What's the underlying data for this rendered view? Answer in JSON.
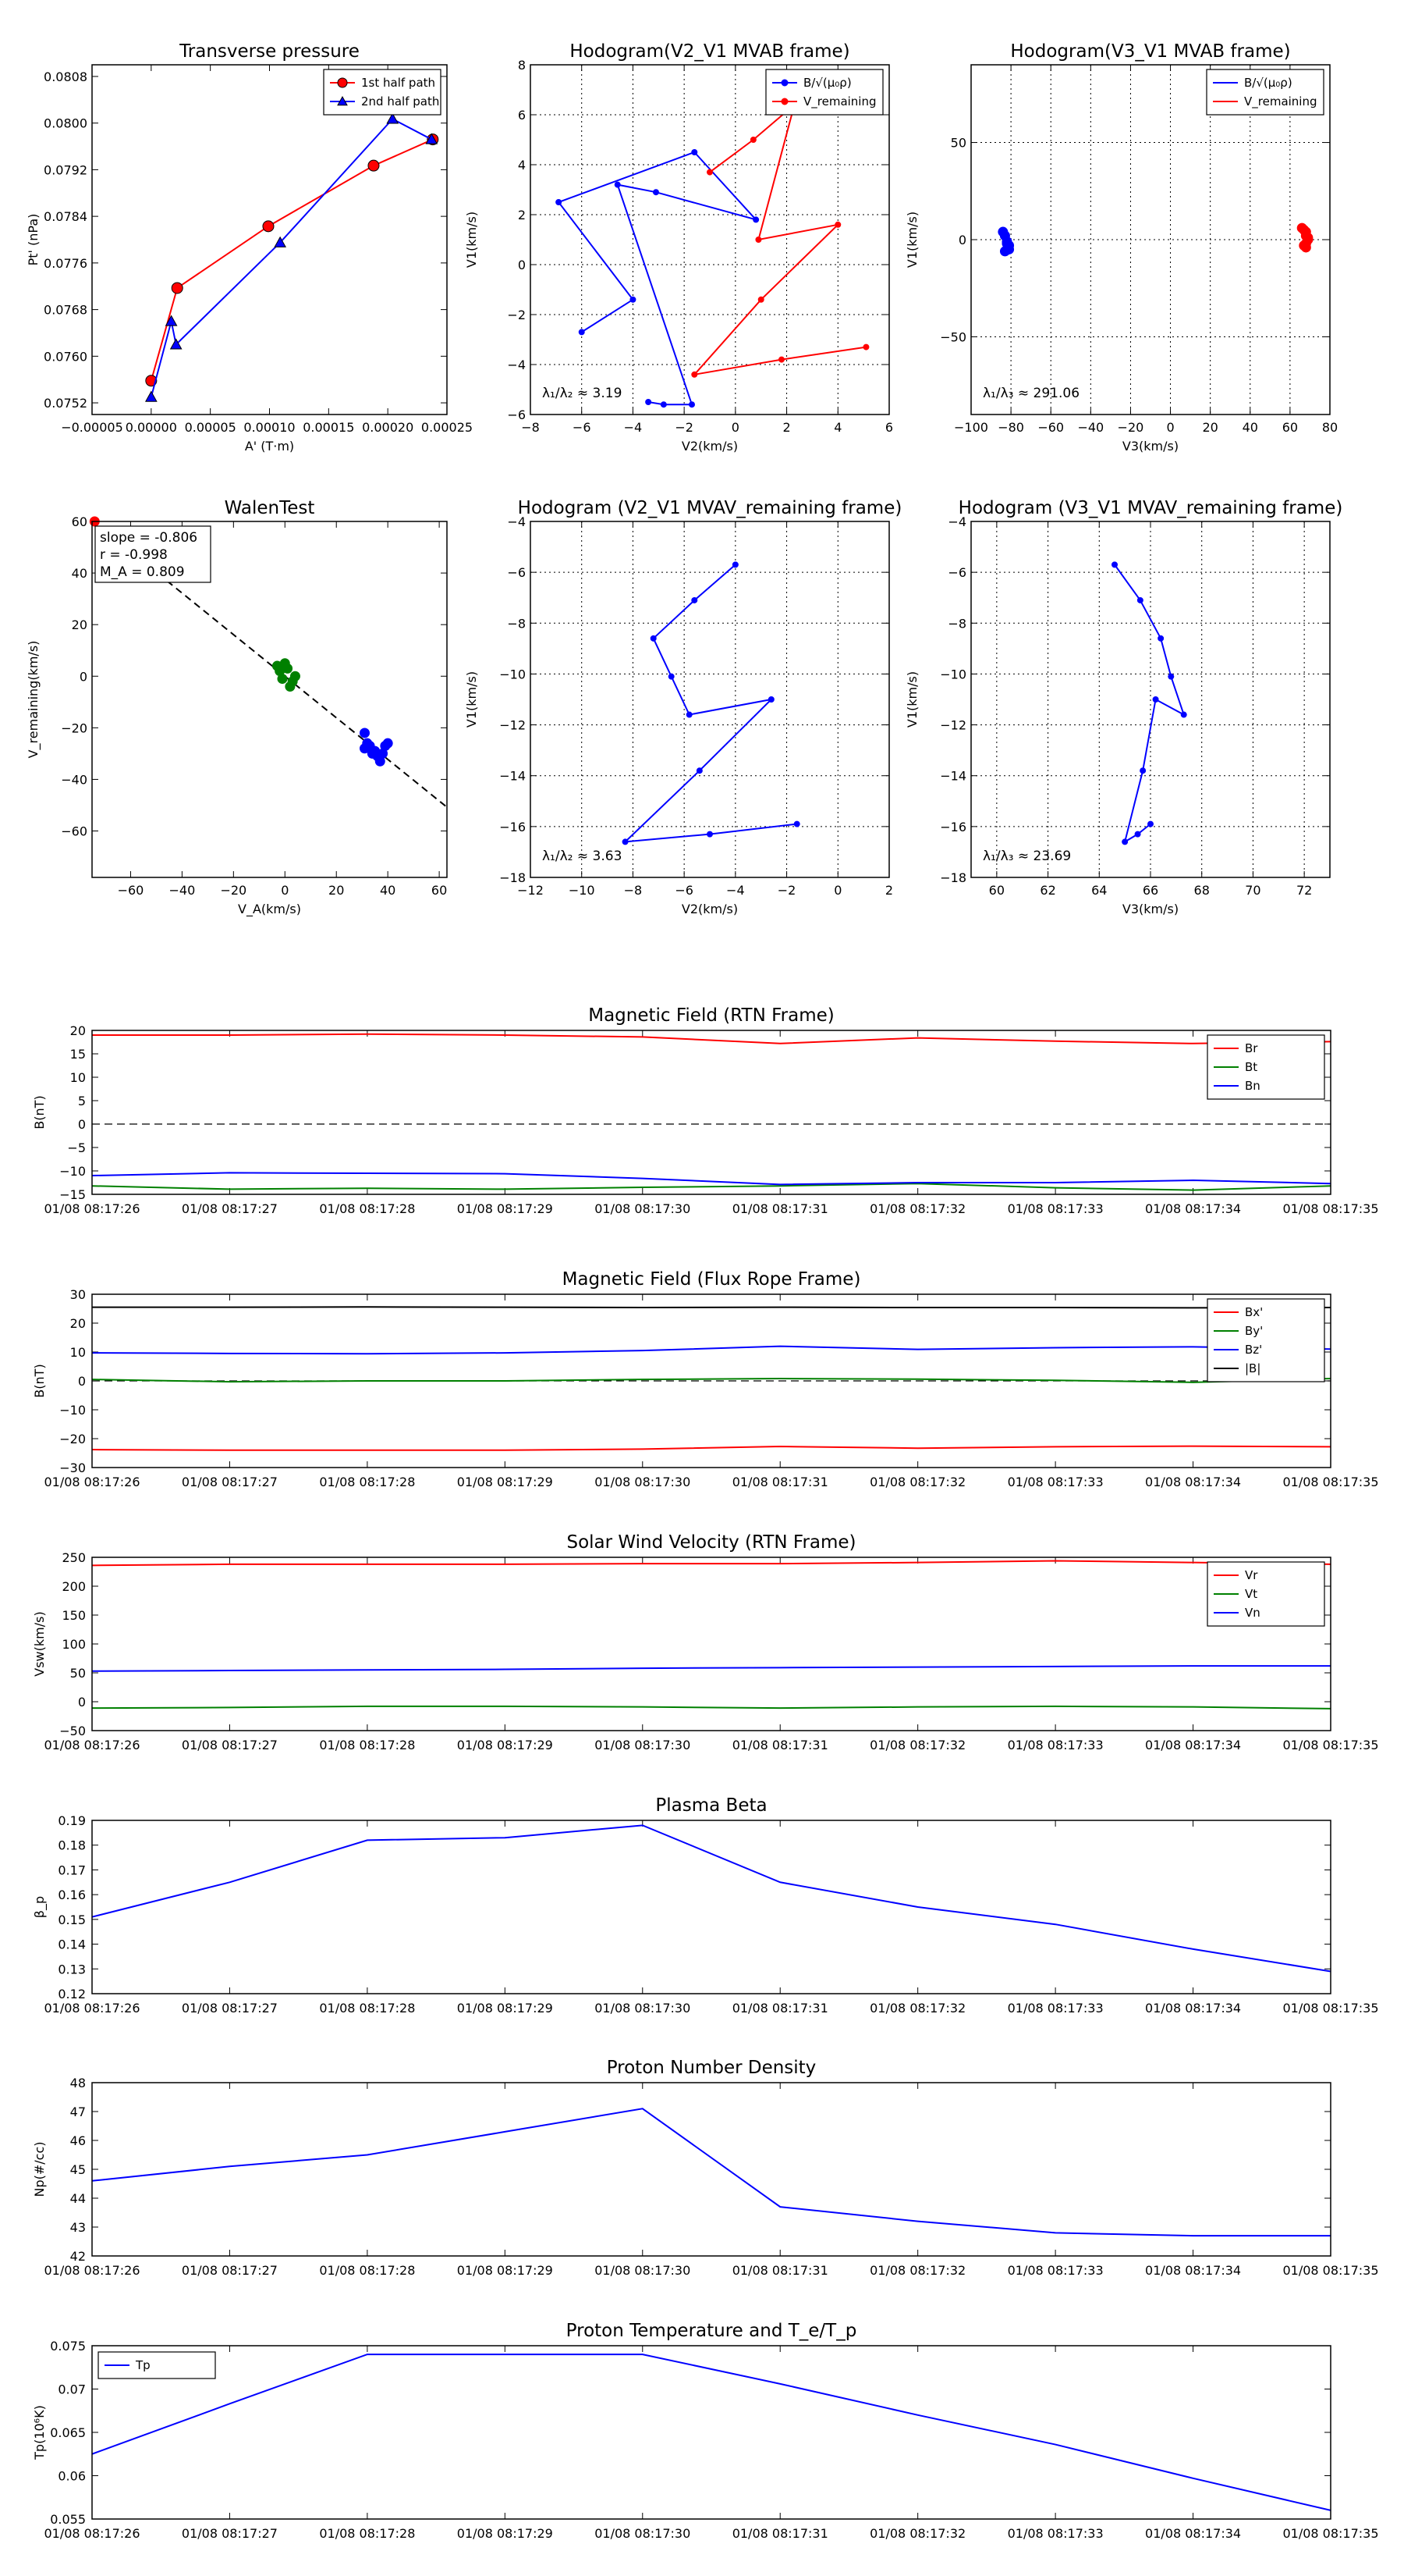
{
  "colors": {
    "red": "#ff0000",
    "blue": "#0000ff",
    "green": "#008000",
    "black": "#000000",
    "grid": "#000000"
  },
  "time_ticks": [
    "01/08 08:17:26",
    "01/08 08:17:27",
    "01/08 08:17:28",
    "01/08 08:17:29",
    "01/08 08:17:30",
    "01/08 08:17:31",
    "01/08 08:17:32",
    "01/08 08:17:33",
    "01/08 08:17:34",
    "01/08 08:17:35"
  ],
  "chart_data": [
    {
      "id": "transverse",
      "type": "line",
      "title": "Transverse pressure",
      "xlabel": "A' (T·m)",
      "ylabel": "Pt' (nPa)",
      "xlim": [
        -5e-05,
        0.00025
      ],
      "ylim": [
        0.075,
        0.081
      ],
      "xticks": [
        -5e-05,
        0,
        5e-05,
        0.0001,
        0.00015,
        0.0002,
        0.00025
      ],
      "xtick_labels": [
        "−0.00005",
        "0.00000",
        "0.00005",
        "0.00010",
        "0.00015",
        "0.00020",
        "0.00025"
      ],
      "yticks": [
        0.0752,
        0.076,
        0.0768,
        0.0776,
        0.0784,
        0.0792,
        0.08,
        0.0808
      ],
      "ytick_labels": [
        "0.0752",
        "0.0760",
        "0.0768",
        "0.0776",
        "0.0784",
        "0.0792",
        "0.0800",
        "0.0808"
      ],
      "grid": false,
      "legend": "top-right",
      "series": [
        {
          "name": "1st half path",
          "color": "#ff0000",
          "marker": "circle",
          "x": [
            0.0,
            2.2e-05,
            9.9e-05,
            0.000188,
            0.000238
          ],
          "y": [
            0.07558,
            0.07717,
            0.07823,
            0.07927,
            0.07972
          ]
        },
        {
          "name": "2nd half path",
          "color": "#0000ff",
          "marker": "triangle",
          "x": [
            0.0,
            1.7e-05,
            2.1e-05,
            0.000109,
            0.000204,
            0.000237
          ],
          "y": [
            0.0753,
            0.0766,
            0.0762,
            0.07795,
            0.08007,
            0.07972
          ]
        }
      ]
    },
    {
      "id": "hodo_mvab",
      "type": "line",
      "title": "Hodogram(V2_V1 MVAB frame)",
      "xlabel": "V2(km/s)",
      "ylabel": "V1(km/s)",
      "xlim": [
        -8,
        6
      ],
      "ylim": [
        -6,
        8
      ],
      "xticks": [
        -8,
        -6,
        -4,
        -2,
        0,
        2,
        4,
        6
      ],
      "yticks": [
        -6,
        -4,
        -2,
        0,
        2,
        4,
        6,
        8
      ],
      "grid": true,
      "legend": "top-right",
      "annotation": "λ₁/λ₂ ≈ 3.19",
      "series": [
        {
          "name": "B/√(μ₀ρ)",
          "color": "#0000ff",
          "x": [
            -6.0,
            -4.0,
            -6.9,
            -1.6,
            0.8,
            -3.1,
            -4.6,
            -1.7,
            -2.8,
            -3.4
          ],
          "y": [
            -2.7,
            -1.4,
            2.5,
            4.5,
            1.8,
            2.9,
            3.2,
            -5.6,
            -5.6,
            -5.5
          ]
        },
        {
          "name": "V_remaining",
          "color": "#ff0000",
          "x": [
            -1.0,
            0.7,
            2.3,
            0.9,
            4.0,
            1.0,
            -1.6,
            1.8,
            5.1
          ],
          "y": [
            3.7,
            5.0,
            6.4,
            1.0,
            1.6,
            -1.4,
            -4.4,
            -3.8,
            -3.3
          ]
        }
      ]
    },
    {
      "id": "hodo_v3_mvab",
      "type": "scatter",
      "title": "Hodogram(V3_V1 MVAB frame)",
      "xlabel": "V3(km/s)",
      "ylabel": "V1(km/s)",
      "xlim": [
        -100,
        80
      ],
      "ylim": [
        -90,
        90
      ],
      "xticks": [
        -100,
        -80,
        -60,
        -40,
        -20,
        0,
        20,
        40,
        60,
        80
      ],
      "yticks": [
        -50,
        0,
        50
      ],
      "grid": true,
      "legend": "top-right",
      "annotation": "λ₁/λ₃ ≈ 291.06",
      "series": [
        {
          "name": "B/√(μ₀ρ)",
          "color": "#0000ff",
          "x": [
            -84,
            -83,
            -82,
            -81,
            -83,
            -82,
            -81
          ],
          "y": [
            4,
            2,
            -2,
            -5,
            -6,
            -1,
            -3
          ]
        },
        {
          "name": "V_remaining",
          "color": "#ff0000",
          "x": [
            66,
            67,
            68,
            68,
            69,
            68,
            67,
            68,
            69
          ],
          "y": [
            6,
            5,
            4,
            2,
            0,
            -2,
            -3,
            -4,
            1
          ]
        }
      ]
    },
    {
      "id": "walen",
      "type": "scatter",
      "title": "WalenTest",
      "xlabel": "V_A(km/s)",
      "ylabel": "V_remaining(km/s)",
      "xlim": [
        -75,
        63
      ],
      "ylim": [
        -78,
        60
      ],
      "xticks": [
        -60,
        -40,
        -20,
        0,
        20,
        40,
        60
      ],
      "yticks": [
        -60,
        -40,
        -20,
        0,
        20,
        40,
        60
      ],
      "grid": false,
      "annotation_lines": [
        "slope = -0.806",
        "r = -0.998",
        "M_A = 0.809"
      ],
      "fit": {
        "slope": -0.806,
        "intercept": 0
      },
      "series": [
        {
          "name": "red",
          "color": "#ff0000",
          "x": [
            -74
          ],
          "y": [
            60
          ]
        },
        {
          "name": "green",
          "color": "#008000",
          "x": [
            -3,
            -2,
            0,
            1,
            2,
            4,
            3,
            -1
          ],
          "y": [
            4,
            2,
            5,
            3,
            -4,
            0,
            -2,
            -1
          ]
        },
        {
          "name": "blue",
          "color": "#0000ff",
          "x": [
            31,
            32,
            33,
            34,
            35,
            36,
            37,
            38,
            39,
            40,
            31,
            33
          ],
          "y": [
            -22,
            -26,
            -28,
            -30,
            -29,
            -31,
            -33,
            -30,
            -27,
            -26,
            -28,
            -27
          ]
        }
      ]
    },
    {
      "id": "hodo_mvav",
      "type": "line",
      "title": "Hodogram (V2_V1 MVAV_remaining frame)",
      "xlabel": "V2(km/s)",
      "ylabel": "V1(km/s)",
      "xlim": [
        -12,
        2
      ],
      "ylim": [
        -18,
        -4
      ],
      "xticks": [
        -12,
        -10,
        -8,
        -6,
        -4,
        -2,
        0,
        2
      ],
      "yticks": [
        -18,
        -16,
        -14,
        -12,
        -10,
        -8,
        -6,
        -4
      ],
      "grid": true,
      "annotation": "λ₁/λ₂ ≈ 3.63",
      "series": [
        {
          "name": "B",
          "color": "#0000ff",
          "x": [
            -4.0,
            -5.6,
            -7.2,
            -6.5,
            -5.8,
            -2.6,
            -5.4,
            -8.3,
            -5.0,
            -1.6
          ],
          "y": [
            -5.7,
            -7.1,
            -8.6,
            -10.1,
            -11.6,
            -11.0,
            -13.8,
            -16.6,
            -16.3,
            -15.9
          ]
        }
      ]
    },
    {
      "id": "hodo_v3_mvav",
      "type": "line",
      "title": "Hodogram (V3_V1 MVAV_remaining frame)",
      "xlabel": "V3(km/s)",
      "ylabel": "V1(km/s)",
      "xlim": [
        59,
        73
      ],
      "ylim": [
        -18,
        -4
      ],
      "xticks": [
        60,
        62,
        64,
        66,
        68,
        70,
        72
      ],
      "yticks": [
        -18,
        -16,
        -14,
        -12,
        -10,
        -8,
        -6,
        -4
      ],
      "grid": true,
      "annotation": "λ₁/λ₃ ≈ 23.69",
      "series": [
        {
          "name": "B",
          "color": "#0000ff",
          "x": [
            64.6,
            65.6,
            66.4,
            66.8,
            67.3,
            66.2,
            65.7,
            65.0,
            65.5,
            66.0
          ],
          "y": [
            -5.7,
            -7.1,
            -8.6,
            -10.1,
            -11.6,
            -11.0,
            -13.8,
            -16.6,
            -16.3,
            -15.9
          ]
        }
      ]
    },
    {
      "id": "mag_rtn",
      "type": "line",
      "title": "Magnetic Field (RTN Frame)",
      "ylabel": "B(nT)",
      "ylim": [
        -15,
        20
      ],
      "yticks": [
        -15,
        -10,
        -5,
        0,
        5,
        10,
        15,
        20
      ],
      "zero_line": true,
      "legend": "top-right",
      "series": [
        {
          "name": "Br",
          "color": "#ff0000",
          "values": [
            19.0,
            19.0,
            19.2,
            19.0,
            18.6,
            17.2,
            18.4,
            17.7,
            17.2,
            17.6
          ]
        },
        {
          "name": "Bt",
          "color": "#008000",
          "values": [
            -13.2,
            -13.9,
            -13.7,
            -13.9,
            -13.5,
            -13.2,
            -12.7,
            -13.6,
            -14.1,
            -13.2
          ]
        },
        {
          "name": "Bn",
          "color": "#0000ff",
          "values": [
            -11.0,
            -10.4,
            -10.5,
            -10.6,
            -11.6,
            -12.9,
            -12.5,
            -12.5,
            -12.0,
            -12.7
          ]
        }
      ]
    },
    {
      "id": "mag_fr",
      "type": "line",
      "title": "Magnetic Field (Flux Rope Frame)",
      "ylabel": "B(nT)",
      "ylim": [
        -30,
        30
      ],
      "yticks": [
        -30,
        -20,
        -10,
        0,
        10,
        20,
        30
      ],
      "zero_line": true,
      "legend": "top-right",
      "series": [
        {
          "name": "Bx'",
          "color": "#ff0000",
          "values": [
            -23.8,
            -24.0,
            -24.0,
            -24.0,
            -23.6,
            -22.7,
            -23.3,
            -22.8,
            -22.6,
            -22.8
          ]
        },
        {
          "name": "By'",
          "color": "#008000",
          "values": [
            0.5,
            -0.3,
            0.0,
            0.0,
            0.5,
            0.8,
            0.6,
            0.2,
            -0.5,
            0.8
          ]
        },
        {
          "name": "Bz'",
          "color": "#0000ff",
          "values": [
            9.7,
            9.5,
            9.4,
            9.7,
            10.5,
            12.0,
            10.9,
            11.5,
            11.8,
            11.0
          ]
        },
        {
          "name": "|B|",
          "color": "#000000",
          "values": [
            25.5,
            25.5,
            25.6,
            25.5,
            25.4,
            25.5,
            25.4,
            25.4,
            25.3,
            25.4
          ]
        }
      ]
    },
    {
      "id": "velocity",
      "type": "line",
      "title": "Solar Wind Velocity (RTN Frame)",
      "ylabel": "Vsw(km/s)",
      "ylim": [
        -50,
        250
      ],
      "yticks": [
        -50,
        0,
        50,
        100,
        150,
        200,
        250
      ],
      "legend": "top-right",
      "series": [
        {
          "name": "Vr",
          "color": "#ff0000",
          "values": [
            236,
            238,
            238,
            238,
            239,
            239,
            241,
            244,
            241,
            238
          ]
        },
        {
          "name": "Vt",
          "color": "#008000",
          "values": [
            -11,
            -10,
            -8,
            -8,
            -9,
            -11,
            -9,
            -8,
            -9,
            -12
          ]
        },
        {
          "name": "Vn",
          "color": "#0000ff",
          "values": [
            53,
            54,
            55,
            56,
            58,
            59,
            60,
            61,
            62,
            62
          ]
        }
      ]
    },
    {
      "id": "beta",
      "type": "line",
      "title": "Plasma Beta",
      "ylabel": "β_p",
      "ylim": [
        0.12,
        0.19
      ],
      "yticks": [
        0.12,
        0.13,
        0.14,
        0.15,
        0.16,
        0.17,
        0.18,
        0.19
      ],
      "series": [
        {
          "name": "beta",
          "color": "#0000ff",
          "values": [
            0.151,
            0.165,
            0.182,
            0.183,
            0.188,
            0.165,
            0.155,
            0.148,
            0.138,
            0.129
          ]
        }
      ]
    },
    {
      "id": "density",
      "type": "line",
      "title": "Proton Number Density",
      "ylabel": "Np(#/cc)",
      "ylim": [
        42,
        48
      ],
      "yticks": [
        42,
        43,
        44,
        45,
        46,
        47,
        48
      ],
      "series": [
        {
          "name": "Np",
          "color": "#0000ff",
          "values": [
            44.6,
            45.1,
            45.5,
            46.3,
            47.1,
            43.7,
            43.2,
            42.8,
            42.7,
            42.7
          ]
        }
      ]
    },
    {
      "id": "temperature",
      "type": "line",
      "title": "Proton Temperature and T_e/T_p",
      "ylabel": "Tp(10⁶K)",
      "ylim": [
        0.055,
        0.075
      ],
      "yticks": [
        0.055,
        0.06,
        0.065,
        0.07,
        0.075
      ],
      "legend": "top-left",
      "series": [
        {
          "name": "Tp",
          "color": "#0000ff",
          "values": [
            0.0625,
            0.0683,
            0.074,
            0.074,
            0.074,
            0.0706,
            0.067,
            0.0636,
            0.0597,
            0.056
          ]
        }
      ]
    }
  ]
}
